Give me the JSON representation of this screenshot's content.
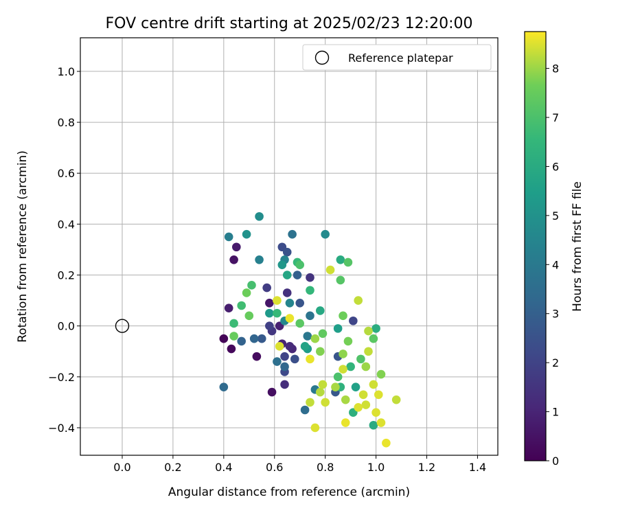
{
  "chart_data": {
    "type": "scatter",
    "title": "FOV centre drift starting at 2025/02/23 12:20:00",
    "xlabel": "Angular distance from reference (arcmin)",
    "ylabel": "Rotation from reference (arcmin)",
    "xlim": [
      -0.165,
      1.48
    ],
    "ylim": [
      -0.508,
      1.132
    ],
    "grid": true,
    "xticks": [
      "0.0",
      "0.2",
      "0.4",
      "0.6",
      "0.8",
      "1.0",
      "1.2",
      "1.4"
    ],
    "yticks": [
      "−0.4",
      "−0.2",
      "0.0",
      "0.2",
      "0.4",
      "0.6",
      "0.8",
      "1.0"
    ],
    "legend": {
      "position": "top-right",
      "entries": [
        "Reference platepar"
      ]
    },
    "reference_point": {
      "x": 0.0,
      "y": 0.0
    },
    "colorbar": {
      "label": "Hours from first FF file",
      "range": [
        0,
        8.75
      ],
      "colormap": "viridis",
      "ticks": [
        "0",
        "1",
        "2",
        "3",
        "4",
        "5",
        "6",
        "7",
        "8"
      ]
    },
    "points": [
      {
        "x": 0.4,
        "y": -0.05,
        "h": 0.1
      },
      {
        "x": 0.43,
        "y": -0.09,
        "h": 0.2
      },
      {
        "x": 0.53,
        "y": -0.12,
        "h": 0.3
      },
      {
        "x": 0.59,
        "y": -0.26,
        "h": 0.4
      },
      {
        "x": 0.44,
        "y": 0.26,
        "h": 0.5
      },
      {
        "x": 0.45,
        "y": 0.31,
        "h": 0.7
      },
      {
        "x": 0.42,
        "y": 0.07,
        "h": 0.8
      },
      {
        "x": 0.58,
        "y": 0.09,
        "h": 0.6
      },
      {
        "x": 0.62,
        "y": 0.0,
        "h": 0.9
      },
      {
        "x": 0.63,
        "y": -0.07,
        "h": 1.0
      },
      {
        "x": 0.67,
        "y": -0.09,
        "h": 1.1
      },
      {
        "x": 0.64,
        "y": -0.23,
        "h": 1.3
      },
      {
        "x": 0.66,
        "y": -0.08,
        "h": 1.2
      },
      {
        "x": 0.74,
        "y": 0.19,
        "h": 1.5
      },
      {
        "x": 0.65,
        "y": 0.13,
        "h": 1.4
      },
      {
        "x": 0.59,
        "y": -0.02,
        "h": 1.6
      },
      {
        "x": 0.57,
        "y": 0.15,
        "h": 1.8
      },
      {
        "x": 0.58,
        "y": 0.0,
        "h": 1.9
      },
      {
        "x": 0.64,
        "y": -0.12,
        "h": 2.0
      },
      {
        "x": 0.91,
        "y": 0.02,
        "h": 2.1
      },
      {
        "x": 0.63,
        "y": 0.31,
        "h": 2.3
      },
      {
        "x": 0.65,
        "y": 0.29,
        "h": 2.5
      },
      {
        "x": 0.64,
        "y": -0.18,
        "h": 2.2
      },
      {
        "x": 0.68,
        "y": -0.13,
        "h": 2.4
      },
      {
        "x": 0.85,
        "y": -0.12,
        "h": 2.6
      },
      {
        "x": 0.84,
        "y": -0.26,
        "h": 2.7
      },
      {
        "x": 0.55,
        "y": -0.05,
        "h": 2.8
      },
      {
        "x": 0.7,
        "y": 0.09,
        "h": 2.6
      },
      {
        "x": 0.69,
        "y": 0.2,
        "h": 3.0
      },
      {
        "x": 0.47,
        "y": -0.06,
        "h": 3.1
      },
      {
        "x": 0.52,
        "y": -0.05,
        "h": 3.2
      },
      {
        "x": 0.64,
        "y": -0.16,
        "h": 3.3
      },
      {
        "x": 0.4,
        "y": -0.24,
        "h": 3.4
      },
      {
        "x": 0.72,
        "y": -0.33,
        "h": 3.5
      },
      {
        "x": 0.61,
        "y": -0.14,
        "h": 3.6
      },
      {
        "x": 0.67,
        "y": 0.36,
        "h": 3.7
      },
      {
        "x": 0.74,
        "y": 0.04,
        "h": 3.8
      },
      {
        "x": 0.73,
        "y": -0.04,
        "h": 3.9
      },
      {
        "x": 0.76,
        "y": -0.25,
        "h": 4.0
      },
      {
        "x": 0.42,
        "y": 0.35,
        "h": 4.2
      },
      {
        "x": 0.54,
        "y": 0.26,
        "h": 4.3
      },
      {
        "x": 0.64,
        "y": 0.26,
        "h": 4.4
      },
      {
        "x": 0.66,
        "y": 0.09,
        "h": 4.5
      },
      {
        "x": 0.64,
        "y": 0.02,
        "h": 4.6
      },
      {
        "x": 0.8,
        "y": 0.36,
        "h": 4.7
      },
      {
        "x": 0.54,
        "y": 0.43,
        "h": 4.8
      },
      {
        "x": 0.49,
        "y": 0.36,
        "h": 5.0
      },
      {
        "x": 0.63,
        "y": 0.24,
        "h": 5.2
      },
      {
        "x": 0.58,
        "y": 0.05,
        "h": 5.3
      },
      {
        "x": 0.73,
        "y": -0.09,
        "h": 5.4
      },
      {
        "x": 0.85,
        "y": -0.01,
        "h": 5.5
      },
      {
        "x": 0.92,
        "y": -0.24,
        "h": 5.6
      },
      {
        "x": 0.72,
        "y": -0.08,
        "h": 5.7
      },
      {
        "x": 0.65,
        "y": 0.2,
        "h": 5.8
      },
      {
        "x": 0.78,
        "y": 0.06,
        "h": 5.9
      },
      {
        "x": 0.86,
        "y": 0.26,
        "h": 6.0
      },
      {
        "x": 0.99,
        "y": -0.39,
        "h": 6.0
      },
      {
        "x": 1.0,
        "y": -0.01,
        "h": 6.1
      },
      {
        "x": 0.91,
        "y": -0.34,
        "h": 6.2
      },
      {
        "x": 0.86,
        "y": -0.24,
        "h": 6.3
      },
      {
        "x": 0.9,
        "y": -0.16,
        "h": 6.4
      },
      {
        "x": 0.74,
        "y": 0.14,
        "h": 6.5
      },
      {
        "x": 0.61,
        "y": 0.05,
        "h": 6.6
      },
      {
        "x": 0.69,
        "y": 0.25,
        "h": 6.6
      },
      {
        "x": 0.44,
        "y": 0.01,
        "h": 6.7
      },
      {
        "x": 0.47,
        "y": 0.08,
        "h": 6.8
      },
      {
        "x": 0.51,
        "y": 0.16,
        "h": 6.9
      },
      {
        "x": 0.7,
        "y": 0.24,
        "h": 7.0
      },
      {
        "x": 0.85,
        "y": -0.2,
        "h": 7.0
      },
      {
        "x": 0.94,
        "y": -0.13,
        "h": 7.1
      },
      {
        "x": 0.89,
        "y": 0.25,
        "h": 7.2
      },
      {
        "x": 0.86,
        "y": 0.18,
        "h": 7.2
      },
      {
        "x": 0.99,
        "y": -0.05,
        "h": 7.3
      },
      {
        "x": 0.79,
        "y": -0.03,
        "h": 7.4
      },
      {
        "x": 0.7,
        "y": 0.01,
        "h": 7.3
      },
      {
        "x": 0.5,
        "y": 0.04,
        "h": 7.5
      },
      {
        "x": 0.49,
        "y": 0.13,
        "h": 7.6
      },
      {
        "x": 0.44,
        "y": -0.04,
        "h": 7.5
      },
      {
        "x": 0.87,
        "y": 0.04,
        "h": 7.6
      },
      {
        "x": 0.89,
        "y": -0.06,
        "h": 7.7
      },
      {
        "x": 0.78,
        "y": -0.1,
        "h": 7.8
      },
      {
        "x": 0.87,
        "y": -0.11,
        "h": 7.9
      },
      {
        "x": 0.76,
        "y": -0.05,
        "h": 8.0
      },
      {
        "x": 0.88,
        "y": -0.29,
        "h": 8.1
      },
      {
        "x": 0.97,
        "y": -0.02,
        "h": 8.2
      },
      {
        "x": 0.93,
        "y": 0.1,
        "h": 8.3
      },
      {
        "x": 0.97,
        "y": -0.1,
        "h": 8.3
      },
      {
        "x": 0.99,
        "y": -0.23,
        "h": 8.4
      },
      {
        "x": 0.96,
        "y": -0.31,
        "h": 8.4
      },
      {
        "x": 1.01,
        "y": -0.27,
        "h": 8.5
      },
      {
        "x": 1.02,
        "y": -0.38,
        "h": 8.5
      },
      {
        "x": 1.04,
        "y": -0.46,
        "h": 8.6
      },
      {
        "x": 1.08,
        "y": -0.29,
        "h": 8.3
      },
      {
        "x": 1.0,
        "y": -0.34,
        "h": 8.5
      },
      {
        "x": 0.95,
        "y": -0.27,
        "h": 8.4
      },
      {
        "x": 0.79,
        "y": -0.23,
        "h": 8.3
      },
      {
        "x": 0.76,
        "y": -0.4,
        "h": 8.5
      },
      {
        "x": 0.74,
        "y": -0.13,
        "h": 8.6
      },
      {
        "x": 0.82,
        "y": 0.22,
        "h": 8.4
      },
      {
        "x": 0.61,
        "y": 0.1,
        "h": 8.5
      },
      {
        "x": 0.66,
        "y": 0.03,
        "h": 8.6
      },
      {
        "x": 0.74,
        "y": -0.3,
        "h": 8.3
      },
      {
        "x": 0.8,
        "y": -0.3,
        "h": 8.4
      },
      {
        "x": 0.88,
        "y": -0.38,
        "h": 8.6
      },
      {
        "x": 0.87,
        "y": -0.17,
        "h": 8.4
      },
      {
        "x": 0.62,
        "y": -0.08,
        "h": 8.5
      },
      {
        "x": 0.78,
        "y": -0.26,
        "h": 8.2
      },
      {
        "x": 0.84,
        "y": -0.24,
        "h": 8.1
      },
      {
        "x": 0.93,
        "y": -0.32,
        "h": 8.5
      },
      {
        "x": 1.02,
        "y": -0.19,
        "h": 7.8
      },
      {
        "x": 0.96,
        "y": -0.16,
        "h": 8.0
      }
    ]
  }
}
